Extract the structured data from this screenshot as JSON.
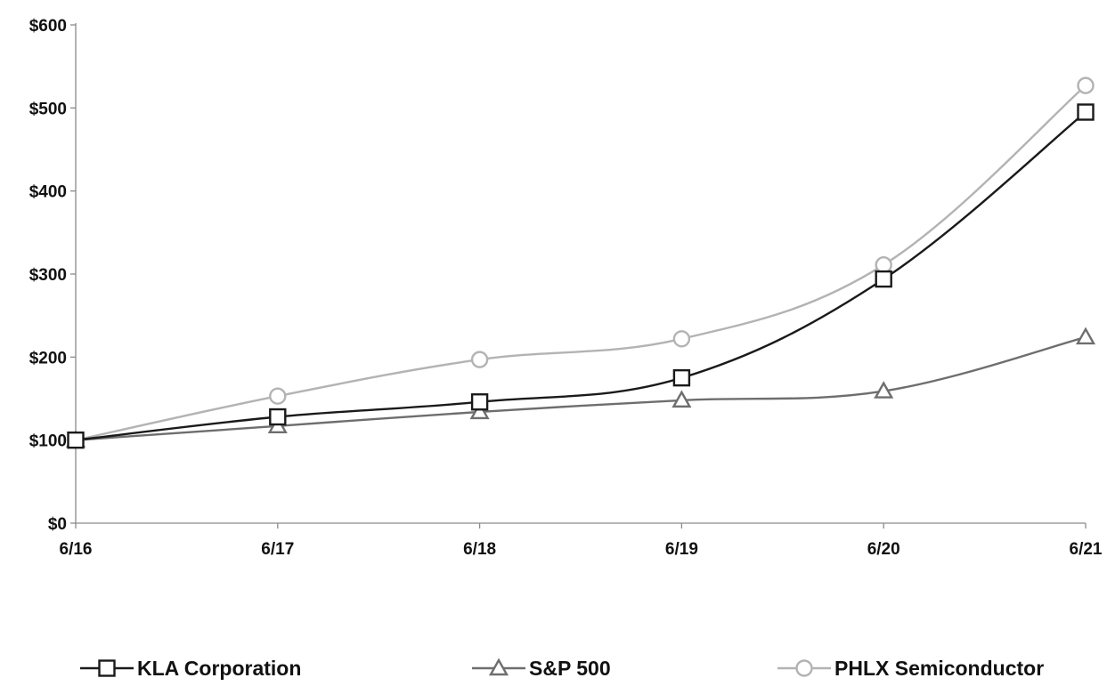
{
  "chart_data": {
    "type": "line",
    "title": "",
    "xlabel": "",
    "ylabel": "",
    "categories": [
      "6/16",
      "6/17",
      "6/18",
      "6/19",
      "6/20",
      "6/21"
    ],
    "y_ticks": [
      "$0",
      "$100",
      "$200",
      "$300",
      "$400",
      "$500",
      "$600"
    ],
    "ylim": [
      0,
      600
    ],
    "grid": false,
    "legend_position": "bottom",
    "series": [
      {
        "name": "KLA Corporation",
        "values": [
          100,
          128,
          146,
          175,
          294,
          495
        ],
        "color": "#1a1a1a",
        "marker": "square"
      },
      {
        "name": "S&P 500",
        "values": [
          100,
          117,
          134,
          148,
          159,
          224
        ],
        "color": "#6e6e6e",
        "marker": "triangle"
      },
      {
        "name": "PHLX Semiconductor",
        "values": [
          100,
          153,
          197,
          222,
          311,
          527
        ],
        "color": "#b3b3b3",
        "marker": "circle"
      }
    ]
  }
}
